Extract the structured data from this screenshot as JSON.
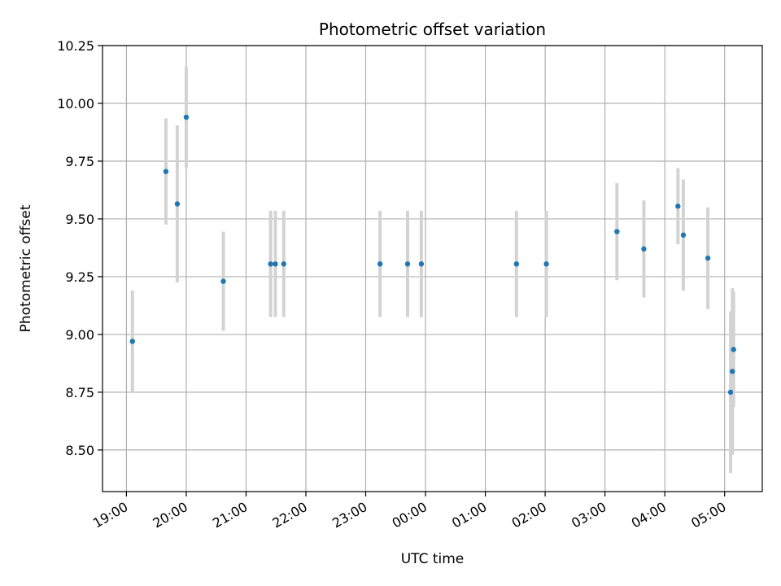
{
  "chart_data": {
    "type": "scatter",
    "title": "Photometric offset variation",
    "xlabel": "UTC time",
    "ylabel": "Photometric offset",
    "ylim": [
      8.32,
      10.25
    ],
    "xlim_hours": [
      18.6,
      29.63
    ],
    "grid": true,
    "colors": {
      "point": "#1f77b4",
      "errorbar": "#d3d3d3",
      "grid": "#b0b0b0"
    },
    "x_ticks": [
      {
        "label": "19:00",
        "hour": 19
      },
      {
        "label": "20:00",
        "hour": 20
      },
      {
        "label": "21:00",
        "hour": 21
      },
      {
        "label": "22:00",
        "hour": 22
      },
      {
        "label": "23:00",
        "hour": 23
      },
      {
        "label": "00:00",
        "hour": 24
      },
      {
        "label": "01:00",
        "hour": 25
      },
      {
        "label": "02:00",
        "hour": 26
      },
      {
        "label": "03:00",
        "hour": 27
      },
      {
        "label": "04:00",
        "hour": 28
      },
      {
        "label": "05:00",
        "hour": 29
      }
    ],
    "y_ticks": [
      {
        "label": "8.50",
        "value": 8.5
      },
      {
        "label": "8.75",
        "value": 8.75
      },
      {
        "label": "9.00",
        "value": 9.0
      },
      {
        "label": "9.25",
        "value": 9.25
      },
      {
        "label": "9.50",
        "value": 9.5
      },
      {
        "label": "9.75",
        "value": 9.75
      },
      {
        "label": "10.00",
        "value": 10.0
      },
      {
        "label": "10.25",
        "value": 10.25
      }
    ],
    "points": [
      {
        "time": "19:06",
        "hour": 19.1,
        "y": 8.97,
        "err": 0.22
      },
      {
        "time": "19:40",
        "hour": 19.66,
        "y": 9.705,
        "err": 0.23
      },
      {
        "time": "19:51",
        "hour": 19.85,
        "y": 9.565,
        "err": 0.34
      },
      {
        "time": "20:00",
        "hour": 20.0,
        "y": 9.94,
        "err": 0.22
      },
      {
        "time": "20:38",
        "hour": 20.62,
        "y": 9.23,
        "err": 0.215
      },
      {
        "time": "21:25",
        "hour": 21.41,
        "y": 9.305,
        "err": 0.23
      },
      {
        "time": "21:29",
        "hour": 21.49,
        "y": 9.305,
        "err": 0.23
      },
      {
        "time": "21:38",
        "hour": 21.63,
        "y": 9.305,
        "err": 0.23
      },
      {
        "time": "23:14",
        "hour": 23.24,
        "y": 9.305,
        "err": 0.23
      },
      {
        "time": "23:42",
        "hour": 23.7,
        "y": 9.305,
        "err": 0.23
      },
      {
        "time": "23:56",
        "hour": 23.93,
        "y": 9.305,
        "err": 0.23
      },
      {
        "time": "01:31",
        "hour": 25.52,
        "y": 9.305,
        "err": 0.23
      },
      {
        "time": "02:01",
        "hour": 26.02,
        "y": 9.305,
        "err": 0.23
      },
      {
        "time": "03:12",
        "hour": 27.2,
        "y": 9.445,
        "err": 0.21
      },
      {
        "time": "03:39",
        "hour": 27.65,
        "y": 9.37,
        "err": 0.21
      },
      {
        "time": "04:13",
        "hour": 28.22,
        "y": 9.555,
        "err": 0.165
      },
      {
        "time": "04:19",
        "hour": 28.31,
        "y": 9.43,
        "err": 0.24
      },
      {
        "time": "04:43",
        "hour": 28.72,
        "y": 9.33,
        "err": 0.22
      },
      {
        "time": "05:06",
        "hour": 29.1,
        "y": 8.75,
        "err": 0.35
      },
      {
        "time": "05:08",
        "hour": 29.13,
        "y": 8.84,
        "err": 0.36
      },
      {
        "time": "05:09",
        "hour": 29.15,
        "y": 8.935,
        "err": 0.25
      }
    ]
  }
}
